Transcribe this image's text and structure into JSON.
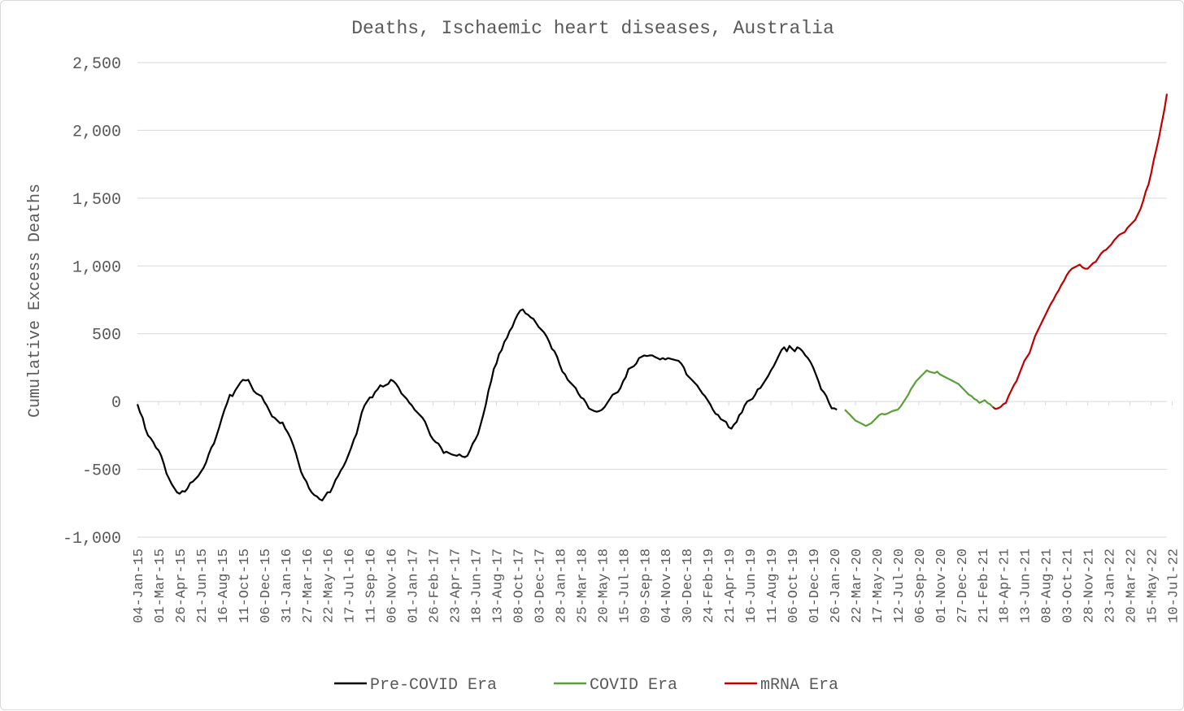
{
  "chart_data": {
    "type": "line",
    "title": "Deaths, Ischaemic heart diseases, Australia",
    "xlabel": "",
    "ylabel": "Cumulative Excess Deaths",
    "ylim": [
      -1000,
      2500
    ],
    "y_ticks": [
      2500,
      2000,
      1500,
      1000,
      500,
      0,
      -500,
      -1000
    ],
    "y_tick_labels": [
      "2,500",
      "2,000",
      "1,500",
      "1,000",
      "500",
      "0",
      "-500",
      "-1,000"
    ],
    "x_tick_labels": [
      "04-Jan-15",
      "01-Mar-15",
      "26-Apr-15",
      "21-Jun-15",
      "16-Aug-15",
      "11-Oct-15",
      "06-Dec-15",
      "31-Jan-16",
      "27-Mar-16",
      "22-May-16",
      "17-Jul-16",
      "11-Sep-16",
      "06-Nov-16",
      "01-Jan-17",
      "26-Feb-17",
      "23-Apr-17",
      "18-Jun-17",
      "13-Aug-17",
      "08-Oct-17",
      "03-Dec-17",
      "28-Jan-18",
      "25-Mar-18",
      "20-May-18",
      "15-Jul-18",
      "09-Sep-18",
      "04-Nov-18",
      "30-Dec-18",
      "24-Feb-19",
      "21-Apr-19",
      "16-Jun-19",
      "11-Aug-19",
      "06-Oct-19",
      "01-Dec-19",
      "26-Jan-20",
      "22-Mar-20",
      "17-May-20",
      "12-Jul-20",
      "06-Sep-20",
      "01-Nov-20",
      "27-Dec-20",
      "21-Feb-21",
      "18-Apr-21",
      "13-Jun-21",
      "08-Aug-21",
      "03-Oct-21",
      "28-Nov-21",
      "23-Jan-22",
      "20-Mar-22",
      "15-May-22",
      "10-Jul-22"
    ],
    "x_tick_step_weeks": 8,
    "grid": true,
    "legend_position": "bottom",
    "series": [
      {
        "name": "Pre-COVID Era",
        "color": "#000000",
        "start_week": 0,
        "values": [
          -20,
          -80,
          -120,
          -200,
          -250,
          -270,
          -300,
          -340,
          -360,
          -400,
          -460,
          -530,
          -570,
          -610,
          -640,
          -670,
          -680,
          -660,
          -665,
          -640,
          -600,
          -590,
          -570,
          -550,
          -520,
          -490,
          -450,
          -390,
          -340,
          -310,
          -250,
          -190,
          -120,
          -60,
          -10,
          50,
          40,
          80,
          110,
          140,
          160,
          155,
          160,
          120,
          80,
          60,
          50,
          40,
          0,
          -30,
          -70,
          -110,
          -120,
          -140,
          -160,
          -155,
          -200,
          -230,
          -270,
          -320,
          -380,
          -450,
          -520,
          -560,
          -590,
          -640,
          -670,
          -690,
          -700,
          -720,
          -730,
          -700,
          -670,
          -670,
          -630,
          -580,
          -550,
          -510,
          -480,
          -440,
          -390,
          -340,
          -280,
          -240,
          -160,
          -80,
          -30,
          0,
          30,
          30,
          70,
          90,
          120,
          110,
          120,
          130,
          160,
          150,
          130,
          100,
          60,
          40,
          20,
          -10,
          -30,
          -60,
          -80,
          -100,
          -120,
          -150,
          -200,
          -250,
          -280,
          -300,
          -310,
          -340,
          -380,
          -370,
          -380,
          -390,
          -395,
          -400,
          -390,
          -405,
          -410,
          -400,
          -360,
          -310,
          -280,
          -240,
          -170,
          -100,
          -20,
          80,
          150,
          240,
          280,
          350,
          380,
          440,
          470,
          520,
          550,
          600,
          640,
          670,
          680,
          650,
          640,
          620,
          610,
          580,
          550,
          530,
          510,
          480,
          440,
          390,
          370,
          330,
          270,
          220,
          200,
          160,
          140,
          120,
          100,
          60,
          30,
          20,
          -10,
          -50,
          -60,
          -70,
          -75,
          -70,
          -60,
          -40,
          -10,
          20,
          50,
          60,
          70,
          100,
          150,
          180,
          240,
          250,
          260,
          280,
          320,
          330,
          340,
          335,
          340,
          340,
          330,
          320,
          310,
          320,
          310,
          320,
          315,
          310,
          305,
          300,
          280,
          250,
          200,
          180,
          160,
          140,
          120,
          90,
          60,
          40,
          10,
          -20,
          -60,
          -90,
          -100,
          -130,
          -140,
          -150,
          -190,
          -200,
          -170,
          -150,
          -100,
          -80,
          -30,
          0,
          10,
          20,
          50,
          90,
          100,
          130,
          160,
          190,
          230,
          260,
          300,
          340,
          380,
          400,
          370,
          410,
          390,
          370,
          400,
          390,
          370,
          340,
          320,
          290,
          250,
          200,
          150,
          90,
          70,
          40,
          -10,
          -50,
          -50,
          -60
        ]
      },
      {
        "name": "COVID Era",
        "color": "#5b9e3a",
        "start_week": 268,
        "values": [
          -60,
          -80,
          -100,
          -120,
          -140,
          -150,
          -160,
          -170,
          -180,
          -170,
          -160,
          -140,
          -120,
          -100,
          -90,
          -95,
          -90,
          -80,
          -70,
          -65,
          -60,
          -40,
          -10,
          20,
          50,
          90,
          120,
          150,
          170,
          190,
          210,
          230,
          220,
          215,
          210,
          220,
          200,
          190,
          180,
          170,
          160,
          150,
          140,
          130,
          110,
          90,
          70,
          50,
          40,
          20,
          10,
          -10,
          0,
          10,
          -10,
          -20,
          -40
        ]
      },
      {
        "name": "mRNA Era",
        "color": "#c00000",
        "start_week": 324,
        "values": [
          -40,
          -55,
          -50,
          -40,
          -20,
          -10,
          40,
          80,
          120,
          150,
          200,
          250,
          300,
          330,
          360,
          420,
          480,
          520,
          560,
          600,
          640,
          680,
          720,
          750,
          790,
          820,
          860,
          890,
          930,
          960,
          980,
          990,
          1000,
          1010,
          990,
          980,
          980,
          1000,
          1020,
          1030,
          1060,
          1090,
          1110,
          1120,
          1140,
          1160,
          1190,
          1210,
          1230,
          1240,
          1250,
          1280,
          1300,
          1320,
          1340,
          1380,
          1420,
          1480,
          1550,
          1600,
          1680,
          1780,
          1860,
          1950,
          2050,
          2150,
          2270
        ]
      }
    ]
  }
}
